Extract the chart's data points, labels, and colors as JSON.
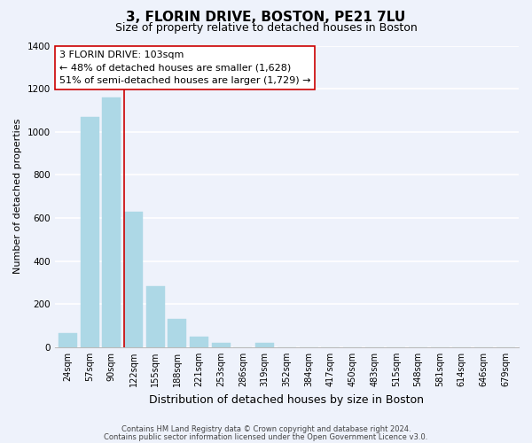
{
  "title": "3, FLORIN DRIVE, BOSTON, PE21 7LU",
  "subtitle": "Size of property relative to detached houses in Boston",
  "xlabel": "Distribution of detached houses by size in Boston",
  "ylabel": "Number of detached properties",
  "categories": [
    "24sqm",
    "57sqm",
    "90sqm",
    "122sqm",
    "155sqm",
    "188sqm",
    "221sqm",
    "253sqm",
    "286sqm",
    "319sqm",
    "352sqm",
    "384sqm",
    "417sqm",
    "450sqm",
    "483sqm",
    "515sqm",
    "548sqm",
    "581sqm",
    "614sqm",
    "646sqm",
    "679sqm"
  ],
  "values": [
    65,
    1070,
    1160,
    630,
    285,
    130,
    48,
    22,
    0,
    20,
    0,
    0,
    0,
    0,
    0,
    0,
    0,
    0,
    0,
    0,
    0
  ],
  "bar_color": "#add8e6",
  "marker_bar_index": 3,
  "marker_color": "#cc0000",
  "annotation_line1": "3 FLORIN DRIVE: 103sqm",
  "annotation_line2": "← 48% of detached houses are smaller (1,628)",
  "annotation_line3": "51% of semi-detached houses are larger (1,729) →",
  "annotation_box_facecolor": "#ffffff",
  "annotation_border_color": "#cc0000",
  "ylim": [
    0,
    1400
  ],
  "yticks": [
    0,
    200,
    400,
    600,
    800,
    1000,
    1200,
    1400
  ],
  "footer_line1": "Contains HM Land Registry data © Crown copyright and database right 2024.",
  "footer_line2": "Contains public sector information licensed under the Open Government Licence v3.0.",
  "bg_color": "#eef2fb",
  "plot_bg_color": "#eef2fb",
  "grid_color": "#ffffff",
  "title_fontsize": 11,
  "subtitle_fontsize": 9,
  "xlabel_fontsize": 9,
  "ylabel_fontsize": 8,
  "tick_fontsize": 7,
  "annotation_fontsize": 8,
  "footer_fontsize": 6
}
